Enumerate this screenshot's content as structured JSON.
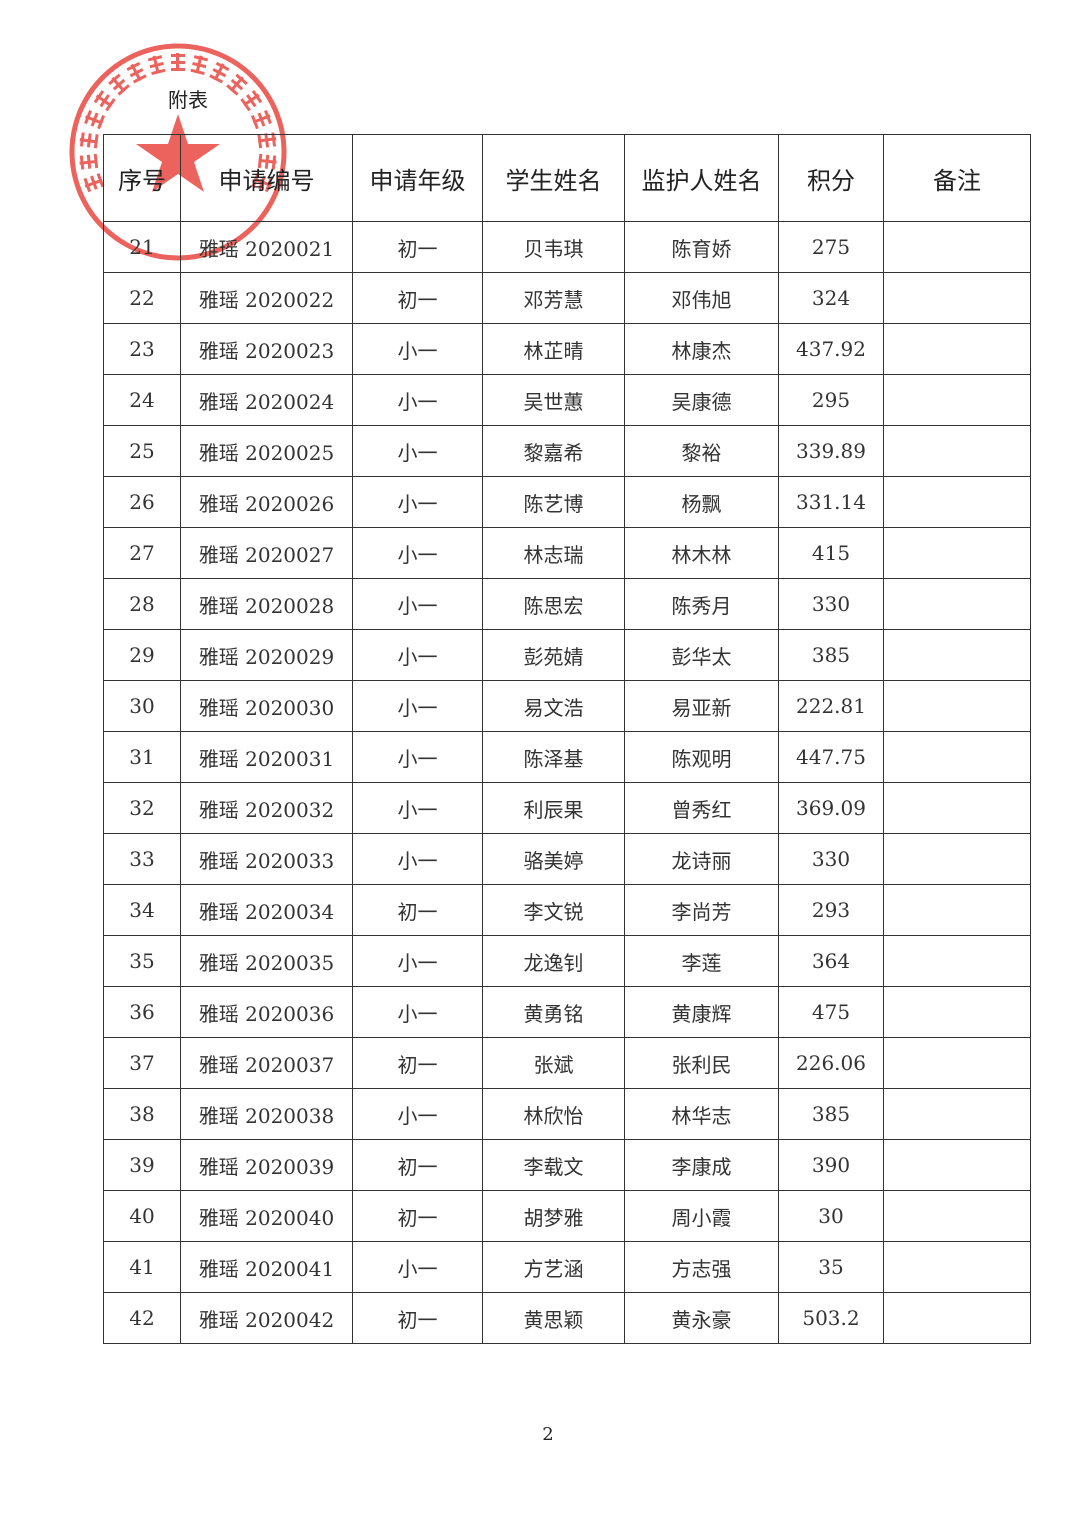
{
  "caption": "附表",
  "stamp": {
    "text": "市南海区大沥镇流动人口和出租屋管理",
    "color": "#e8413a"
  },
  "table": {
    "headers": [
      "序号",
      "申请编号",
      "申请年级",
      "学生姓名",
      "监护人姓名",
      "积分",
      "备注"
    ],
    "rows": [
      [
        "21",
        "雅瑶 2020021",
        "初一",
        "贝韦琪",
        "陈育娇",
        "275",
        ""
      ],
      [
        "22",
        "雅瑶 2020022",
        "初一",
        "邓芳慧",
        "邓伟旭",
        "324",
        ""
      ],
      [
        "23",
        "雅瑶 2020023",
        "小一",
        "林芷晴",
        "林康杰",
        "437.92",
        ""
      ],
      [
        "24",
        "雅瑶 2020024",
        "小一",
        "吴世蕙",
        "吴康德",
        "295",
        ""
      ],
      [
        "25",
        "雅瑶 2020025",
        "小一",
        "黎嘉希",
        "黎裕",
        "339.89",
        ""
      ],
      [
        "26",
        "雅瑶 2020026",
        "小一",
        "陈艺博",
        "杨飘",
        "331.14",
        ""
      ],
      [
        "27",
        "雅瑶 2020027",
        "小一",
        "林志瑞",
        "林木林",
        "415",
        ""
      ],
      [
        "28",
        "雅瑶 2020028",
        "小一",
        "陈思宏",
        "陈秀月",
        "330",
        ""
      ],
      [
        "29",
        "雅瑶 2020029",
        "小一",
        "彭苑婧",
        "彭华太",
        "385",
        ""
      ],
      [
        "30",
        "雅瑶 2020030",
        "小一",
        "易文浩",
        "易亚新",
        "222.81",
        ""
      ],
      [
        "31",
        "雅瑶 2020031",
        "小一",
        "陈泽基",
        "陈观明",
        "447.75",
        ""
      ],
      [
        "32",
        "雅瑶 2020032",
        "小一",
        "利辰果",
        "曾秀红",
        "369.09",
        ""
      ],
      [
        "33",
        "雅瑶 2020033",
        "小一",
        "骆美婷",
        "龙诗丽",
        "330",
        ""
      ],
      [
        "34",
        "雅瑶 2020034",
        "初一",
        "李文锐",
        "李尚芳",
        "293",
        ""
      ],
      [
        "35",
        "雅瑶 2020035",
        "小一",
        "龙逸钊",
        "李莲",
        "364",
        ""
      ],
      [
        "36",
        "雅瑶 2020036",
        "小一",
        "黄勇铭",
        "黄康辉",
        "475",
        ""
      ],
      [
        "37",
        "雅瑶 2020037",
        "初一",
        "张斌",
        "张利民",
        "226.06",
        ""
      ],
      [
        "38",
        "雅瑶 2020038",
        "小一",
        "林欣怡",
        "林华志",
        "385",
        ""
      ],
      [
        "39",
        "雅瑶 2020039",
        "初一",
        "李载文",
        "李康成",
        "390",
        ""
      ],
      [
        "40",
        "雅瑶 2020040",
        "初一",
        "胡梦雅",
        "周小霞",
        "30",
        ""
      ],
      [
        "41",
        "雅瑶 2020041",
        "小一",
        "方艺涵",
        "方志强",
        "35",
        ""
      ],
      [
        "42",
        "雅瑶 2020042",
        "初一",
        "黄思颖",
        "黄永豪",
        "503.2",
        ""
      ]
    ]
  },
  "page_number": "2"
}
